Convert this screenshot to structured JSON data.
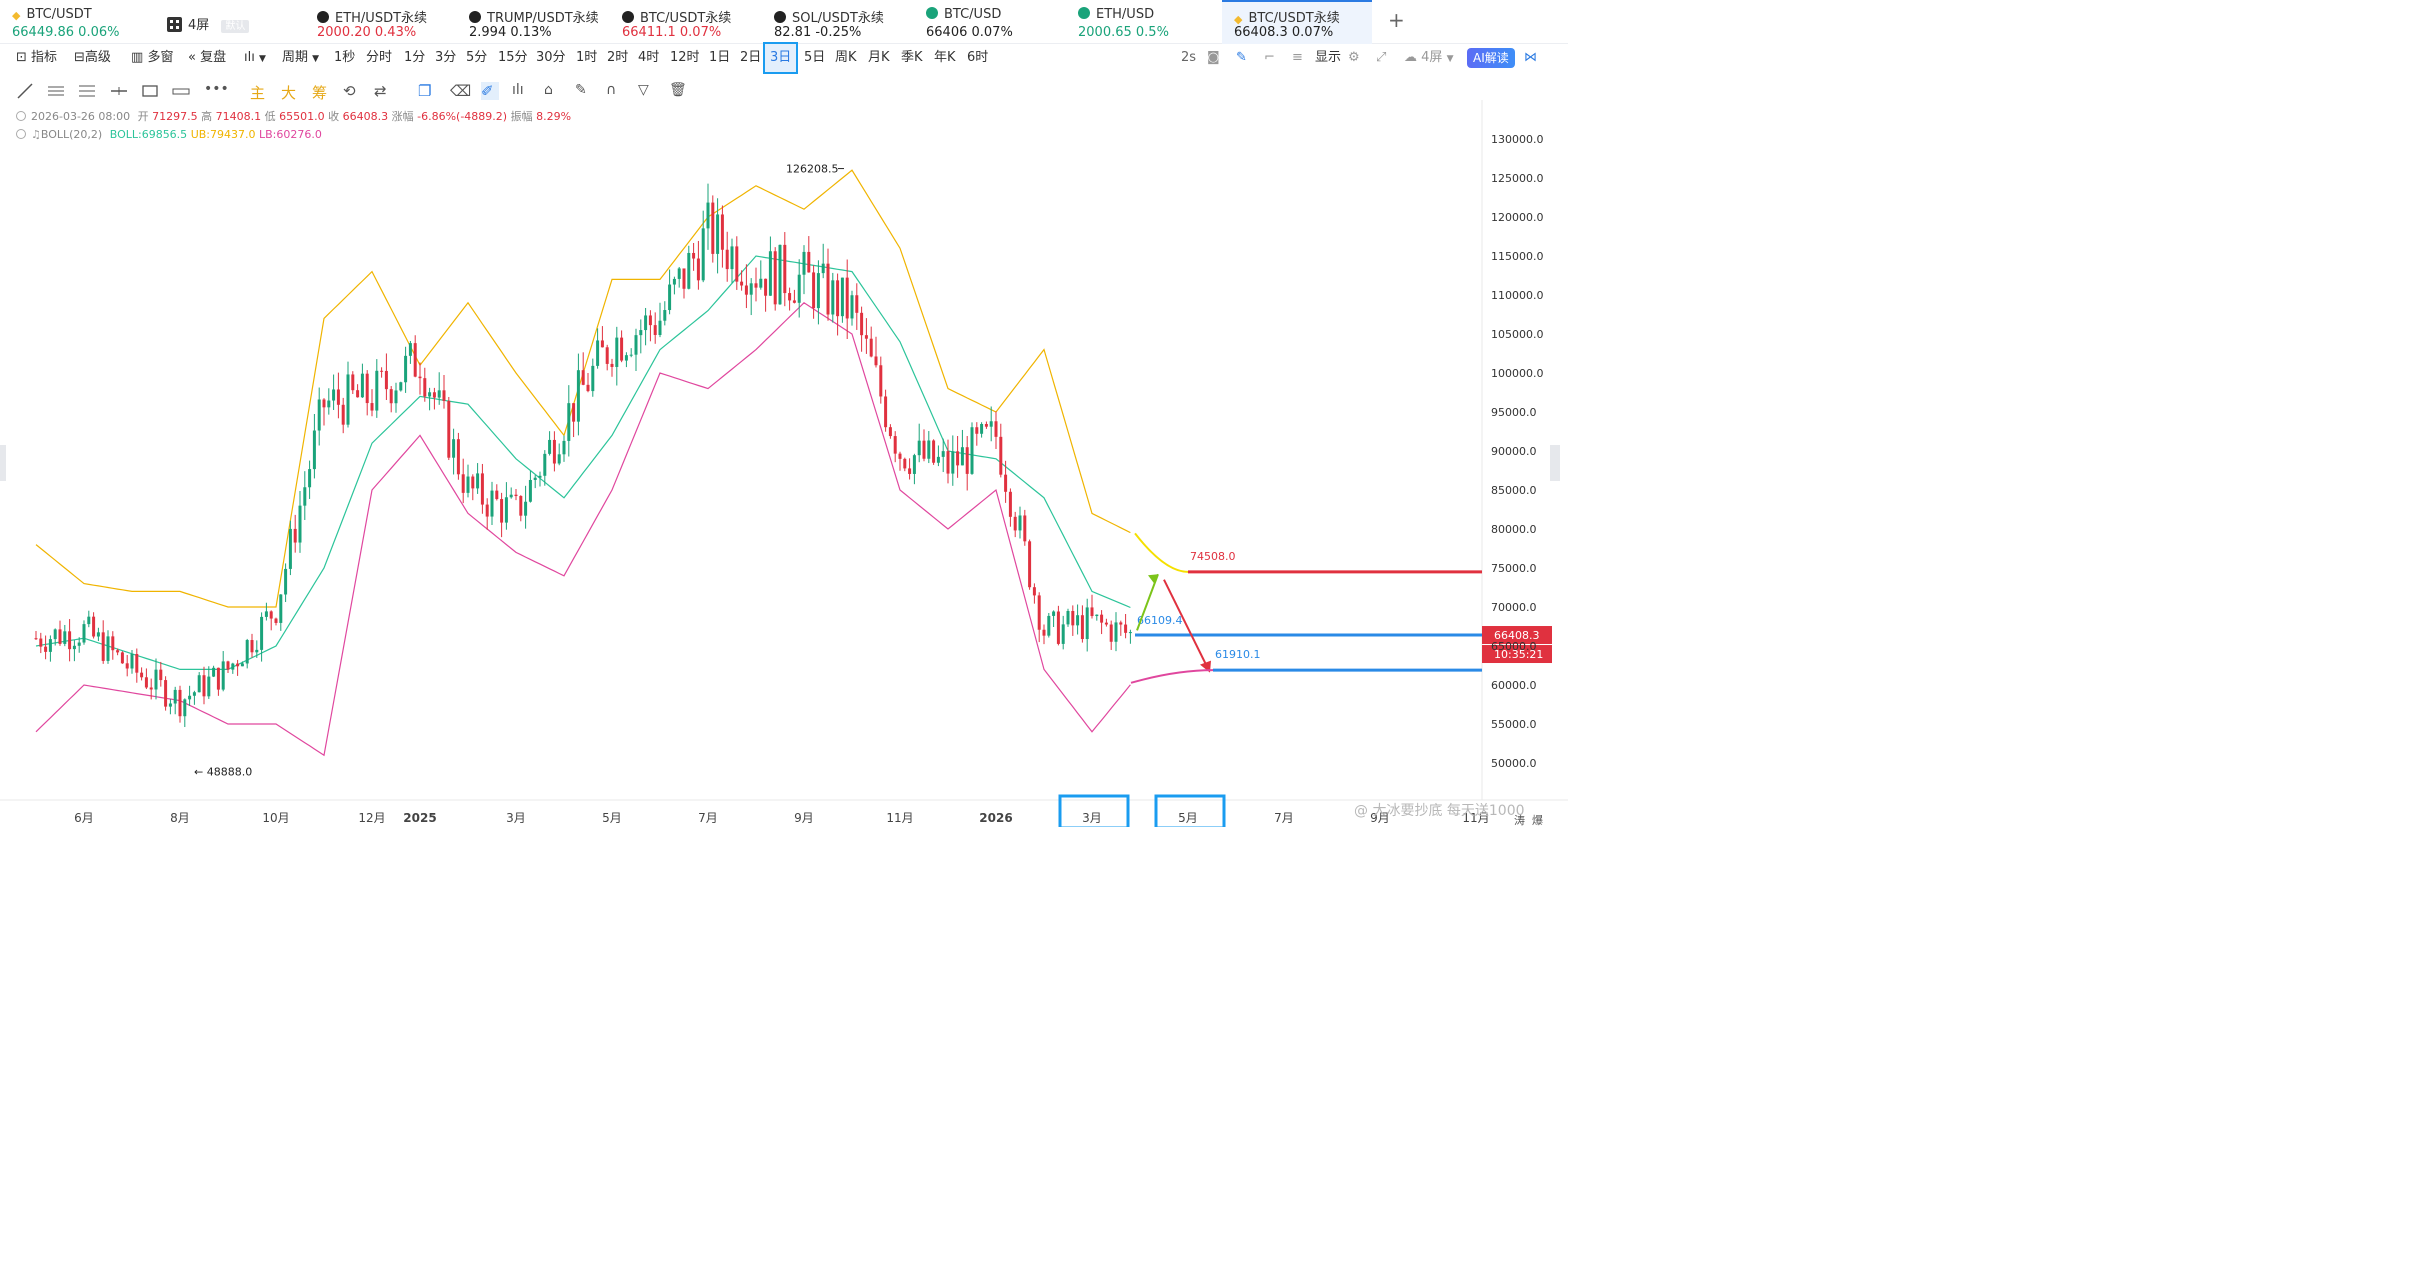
{
  "tickers": [
    {
      "name": "BTC/USDT",
      "price": "66449.86",
      "change": "0.06%",
      "dir": "up",
      "icon_color": "#f3ba2f",
      "icon": "binance-icon"
    },
    {
      "name": "4屏",
      "badge": "默认",
      "icon": "grid-layout-icon"
    },
    {
      "name": "ETH/USDT永续",
      "price": "2000.20",
      "change": "0.43%",
      "dir": "dn",
      "icon_color": "#222",
      "icon": "okx-icon"
    },
    {
      "name": "TRUMP/USDT永续",
      "price": "2.994",
      "change": "0.13%",
      "dir": "nu",
      "icon_color": "#222",
      "icon": "okx-icon"
    },
    {
      "name": "BTC/USDT永续",
      "price": "66411.1",
      "change": "0.07%",
      "dir": "dn",
      "icon_color": "#222",
      "icon": "okx-icon"
    },
    {
      "name": "SOL/USDT永续",
      "price": "82.81",
      "change": "-0.25%",
      "dir": "nu",
      "icon_color": "#222",
      "icon": "okx-icon"
    },
    {
      "name": "BTC/USD",
      "price": "66406",
      "change": "0.07%",
      "dir": "nu",
      "icon_color": "#1aa37a",
      "icon": "exchange-icon"
    },
    {
      "name": "ETH/USD",
      "price": "2000.65",
      "change": "0.5%",
      "dir": "up",
      "icon_color": "#1aa37a",
      "icon": "exchange-icon"
    },
    {
      "name": "BTC/USDT永续",
      "price": "66408.3",
      "change": "0.07%",
      "dir": "nu",
      "icon_color": "#f3ba2f",
      "icon": "binance-icon",
      "active": true
    }
  ],
  "add_tab": "+",
  "toolbar": {
    "indicator": "指标",
    "advanced": "高级",
    "multi": "多窗",
    "replay": "复盘",
    "period": "周期",
    "intervals": [
      "1秒",
      "分时",
      "1分",
      "3分",
      "5分",
      "15分",
      "30分",
      "1时",
      "2时",
      "4时",
      "12时",
      "1日",
      "2日",
      "3日",
      "5日",
      "周K",
      "月K",
      "季K",
      "年K",
      "6时"
    ],
    "selected_interval": "3日",
    "right_speed": "2s",
    "display": "显示",
    "screens": "4屏",
    "ai": "AI解读"
  },
  "drawing_tools": {
    "main": "主",
    "big": "大",
    "chip": "筹"
  },
  "legend": {
    "date": "2026-03-26 08:00",
    "open_label": "开",
    "open": "71297.5",
    "high_label": "高",
    "high": "71408.1",
    "low_label": "低",
    "low": "65501.0",
    "close_label": "收",
    "close": "66408.3",
    "chg_label": "涨幅",
    "chg": "-6.86%(-4889.2)",
    "amp_label": "振幅",
    "amp": "8.29%",
    "boll_name": "BOLL(20,2)",
    "boll_mid": "BOLL:69856.5",
    "boll_ub": "UB:79437.0",
    "boll_lb": "LB:60276.0"
  },
  "chart_data": {
    "type": "candlestick",
    "indicator": "BOLL(20,2)",
    "y_ticks": [
      130000,
      125000,
      120000,
      115000,
      110000,
      105000,
      100000,
      95000,
      90000,
      85000,
      80000,
      75000,
      70000,
      65000,
      60000,
      55000,
      50000
    ],
    "y_tick_labels": [
      "130000.0",
      "125000.0",
      "120000.0",
      "115000.0",
      "110000.0",
      "105000.0",
      "100000.0",
      "95000.0",
      "90000.0",
      "85000.0",
      "80000.0",
      "75000.0",
      "70000.0",
      "65000.0",
      "60000.0",
      "55000.0",
      "50000.0"
    ],
    "x_ticks": [
      "6月",
      "8月",
      "10月",
      "12月",
      "2025",
      "3月",
      "5月",
      "7月",
      "9月",
      "11月",
      "2026",
      "3月",
      "5月",
      "7月",
      "9月",
      "11月"
    ],
    "x_tick_dates": [
      "2024-06",
      "2024-08",
      "2024-10",
      "2024-12",
      "2025-01",
      "2025-03",
      "2025-05",
      "2025-07",
      "2025-09",
      "2025-11",
      "2026-01",
      "2026-03",
      "2026-05",
      "2026-07",
      "2026-09",
      "2026-11"
    ],
    "x_range": [
      "2024-05",
      "2026-12"
    ],
    "y_range": [
      48000,
      132000
    ],
    "close_path": [
      [
        "2024-05",
        66000
      ],
      [
        "2024-06",
        67000
      ],
      [
        "2024-07",
        62000
      ],
      [
        "2024-08",
        58000
      ],
      [
        "2024-09",
        62000
      ],
      [
        "2024-10",
        70000
      ],
      [
        "2024-11",
        96000
      ],
      [
        "2024-12",
        97000
      ],
      [
        "2025-01",
        102000
      ],
      [
        "2025-02",
        85000
      ],
      [
        "2025-03",
        82000
      ],
      [
        "2025-04",
        94000
      ],
      [
        "2025-05",
        104000
      ],
      [
        "2025-06",
        107000
      ],
      [
        "2025-07",
        118000
      ],
      [
        "2025-08",
        113000
      ],
      [
        "2025-09",
        112000
      ],
      [
        "2025-10",
        108000
      ],
      [
        "2025-11",
        90000
      ],
      [
        "2025-12",
        88000
      ],
      [
        "2026-01",
        92000
      ],
      [
        "2026-02",
        67000
      ],
      [
        "2026-03",
        68000
      ],
      [
        "2026-03-26",
        66408.3
      ]
    ],
    "upper_band": [
      [
        "2024-05",
        78000
      ],
      [
        "2024-06",
        73000
      ],
      [
        "2024-07",
        72000
      ],
      [
        "2024-08",
        72000
      ],
      [
        "2024-09",
        70000
      ],
      [
        "2024-10",
        70000
      ],
      [
        "2024-11",
        107000
      ],
      [
        "2024-12",
        113000
      ],
      [
        "2025-01",
        101000
      ],
      [
        "2025-02",
        109000
      ],
      [
        "2025-03",
        100000
      ],
      [
        "2025-04",
        92000
      ],
      [
        "2025-05",
        112000
      ],
      [
        "2025-06",
        112000
      ],
      [
        "2025-07",
        120000
      ],
      [
        "2025-08",
        124000
      ],
      [
        "2025-09",
        121000
      ],
      [
        "2025-10",
        126000
      ],
      [
        "2025-11",
        116000
      ],
      [
        "2025-12",
        98000
      ],
      [
        "2026-01",
        95000
      ],
      [
        "2026-02",
        103000
      ],
      [
        "2026-03",
        82000
      ],
      [
        "2026-03-26",
        79437.0
      ]
    ],
    "mid_band": [
      [
        "2024-05",
        65000
      ],
      [
        "2024-06",
        66000
      ],
      [
        "2024-07",
        64000
      ],
      [
        "2024-08",
        62000
      ],
      [
        "2024-09",
        62000
      ],
      [
        "2024-10",
        65000
      ],
      [
        "2024-11",
        75000
      ],
      [
        "2024-12",
        91000
      ],
      [
        "2025-01",
        97000
      ],
      [
        "2025-02",
        96000
      ],
      [
        "2025-03",
        89000
      ],
      [
        "2025-04",
        84000
      ],
      [
        "2025-05",
        92000
      ],
      [
        "2025-06",
        103000
      ],
      [
        "2025-07",
        108000
      ],
      [
        "2025-08",
        115000
      ],
      [
        "2025-09",
        114000
      ],
      [
        "2025-10",
        113000
      ],
      [
        "2025-11",
        104000
      ],
      [
        "2025-12",
        90000
      ],
      [
        "2026-01",
        89000
      ],
      [
        "2026-02",
        84000
      ],
      [
        "2026-03",
        72000
      ],
      [
        "2026-03-26",
        69856.5
      ]
    ],
    "lower_band": [
      [
        "2024-05",
        54000
      ],
      [
        "2024-06",
        60000
      ],
      [
        "2024-07",
        59000
      ],
      [
        "2024-08",
        58000
      ],
      [
        "2024-09",
        55000
      ],
      [
        "2024-10",
        55000
      ],
      [
        "2024-11",
        51000
      ],
      [
        "2024-12",
        85000
      ],
      [
        "2025-01",
        92000
      ],
      [
        "2025-02",
        82000
      ],
      [
        "2025-03",
        77000
      ],
      [
        "2025-04",
        74000
      ],
      [
        "2025-05",
        85000
      ],
      [
        "2025-06",
        100000
      ],
      [
        "2025-07",
        98000
      ],
      [
        "2025-08",
        103000
      ],
      [
        "2025-09",
        109000
      ],
      [
        "2025-10",
        105000
      ],
      [
        "2025-11",
        85000
      ],
      [
        "2025-12",
        80000
      ],
      [
        "2026-01",
        85000
      ],
      [
        "2026-02",
        62000
      ],
      [
        "2026-03",
        54000
      ],
      [
        "2026-03-26",
        60276.0
      ]
    ],
    "annotations": {
      "high_marker": "126208.5",
      "low_marker": "48888.0",
      "target_up": "74508.0",
      "current_level": "66109.4",
      "target_down": "61910.1",
      "price_tag": "66408.3",
      "countdown": "10:35:21",
      "highlighted_months": [
        "3月",
        "5月"
      ]
    }
  },
  "watermark": "@ 大冰要抄底 每天送1000",
  "bottom_right": [
    "涛",
    "爆"
  ]
}
